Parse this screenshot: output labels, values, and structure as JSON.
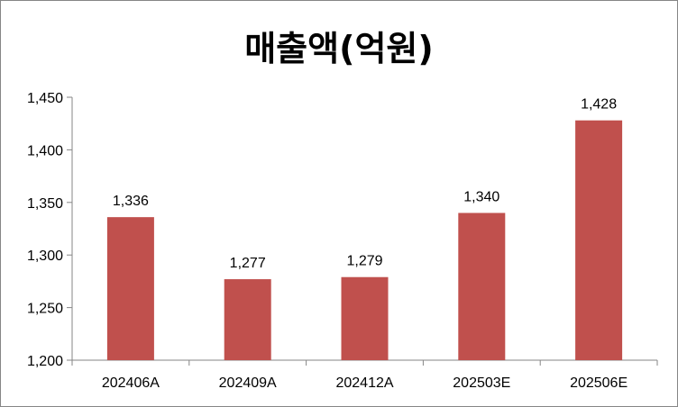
{
  "chart_data": {
    "type": "bar",
    "title": "매출액(억원)",
    "xlabel": "",
    "ylabel": "",
    "categories": [
      "202406A",
      "202409A",
      "202412A",
      "202503E",
      "202506E"
    ],
    "values": [
      1336,
      1277,
      1279,
      1340,
      1428
    ],
    "value_labels": [
      "1,336",
      "1,277",
      "1,279",
      "1,340",
      "1,428"
    ],
    "ylim": [
      1200,
      1450
    ],
    "yticks": [
      1200,
      1250,
      1300,
      1350,
      1400,
      1450
    ],
    "ytick_labels": [
      "1,200",
      "1,250",
      "1,300",
      "1,350",
      "1,400",
      "1,450"
    ],
    "grid": false,
    "legend": "none",
    "bar_color": "#C0504D"
  }
}
